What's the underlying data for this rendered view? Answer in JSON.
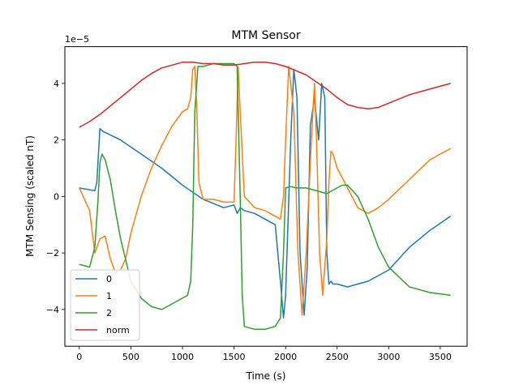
{
  "chart_data": {
    "type": "line",
    "title": "MTM Sensor",
    "xlabel": "Time (s)",
    "ylabel": "MTM Sensing (scaled nT)",
    "scale_label": "1e−5",
    "xlim": [
      -140,
      3760
    ],
    "ylim": [
      -5.3,
      5.3
    ],
    "xticks": [
      0,
      500,
      1000,
      1500,
      2000,
      2500,
      3000,
      3500
    ],
    "xtick_labels": [
      "0",
      "500",
      "1000",
      "1500",
      "2000",
      "2500",
      "3000",
      "3500"
    ],
    "yticks": [
      -4,
      -2,
      0,
      2,
      4
    ],
    "ytick_labels": [
      "−4",
      "−2",
      "0",
      "2",
      "4"
    ],
    "grid": false,
    "legend_position": "lower-left",
    "series": [
      {
        "name": "0",
        "color": "#1f77b4",
        "x": [
          0,
          150,
          170,
          200,
          230,
          400,
          600,
          800,
          1000,
          1200,
          1400,
          1500,
          1530,
          1560,
          1600,
          1700,
          1800,
          1900,
          1950,
          1980,
          2000,
          2050,
          2080,
          2110,
          2140,
          2180,
          2210,
          2240,
          2280,
          2320,
          2350,
          2380,
          2400,
          2420,
          2440,
          2460,
          2500,
          2600,
          2800,
          3000,
          3200,
          3400,
          3600
        ],
        "y": [
          0.3,
          0.2,
          0.5,
          2.4,
          2.3,
          2.0,
          1.5,
          1.0,
          0.4,
          -0.1,
          -0.4,
          -0.3,
          -0.6,
          -0.4,
          -0.5,
          -0.6,
          -0.8,
          -1.0,
          -3.0,
          -4.3,
          -3.5,
          2.0,
          4.5,
          3.5,
          -2.0,
          -4.2,
          -2.5,
          2.5,
          3.5,
          2.0,
          4.0,
          3.5,
          -2.0,
          -3.1,
          -3.0,
          -3.1,
          -3.1,
          -3.2,
          -3.0,
          -2.6,
          -1.8,
          -1.2,
          -0.7
        ]
      },
      {
        "name": "1",
        "color": "#ff7f0e",
        "x": [
          0,
          100,
          150,
          200,
          250,
          300,
          350,
          400,
          450,
          500,
          600,
          700,
          800,
          900,
          1000,
          1050,
          1080,
          1100,
          1120,
          1140,
          1160,
          1200,
          1300,
          1400,
          1500,
          1520,
          1540,
          1560,
          1600,
          1700,
          1800,
          1900,
          1950,
          1980,
          2000,
          2030,
          2080,
          2120,
          2160,
          2200,
          2250,
          2280,
          2300,
          2330,
          2360,
          2400,
          2420,
          2440,
          2460,
          2500,
          2600,
          2700,
          2800,
          2900,
          3000,
          3200,
          3400,
          3600
        ],
        "y": [
          0.3,
          -0.5,
          -2.0,
          -1.5,
          -1.4,
          -2.2,
          -2.7,
          -2.6,
          -2.2,
          -1.3,
          0.0,
          1.0,
          1.8,
          2.5,
          3.0,
          3.1,
          3.5,
          4.5,
          4.6,
          3.0,
          0.5,
          -0.1,
          -0.1,
          -0.2,
          -0.2,
          2.0,
          4.6,
          3.0,
          0.0,
          -0.4,
          -0.5,
          -0.7,
          -0.8,
          0.0,
          2.0,
          4.6,
          3.0,
          -2.0,
          -4.2,
          -2.0,
          2.0,
          4.0,
          2.0,
          -2.0,
          -3.5,
          -1.5,
          0.5,
          1.6,
          1.5,
          1.0,
          0.3,
          -0.4,
          -0.6,
          -0.4,
          -0.1,
          0.6,
          1.3,
          1.7
        ]
      },
      {
        "name": "2",
        "color": "#2ca02c",
        "x": [
          0,
          100,
          150,
          180,
          200,
          220,
          250,
          300,
          350,
          400,
          500,
          600,
          700,
          800,
          900,
          1000,
          1050,
          1080,
          1100,
          1120,
          1150,
          1200,
          1300,
          1400,
          1500,
          1530,
          1560,
          1580,
          1600,
          1700,
          1800,
          1900,
          1950,
          1980,
          2000,
          2050,
          2100,
          2200,
          2300,
          2400,
          2450,
          2500,
          2550,
          2600,
          2700,
          2800,
          2900,
          3000,
          3200,
          3400,
          3600
        ],
        "y": [
          -2.4,
          -2.5,
          -1.8,
          -0.2,
          1.2,
          1.5,
          1.3,
          0.6,
          -0.5,
          -1.5,
          -3.0,
          -3.6,
          -3.9,
          -4.0,
          -3.8,
          -3.6,
          -3.5,
          -3.0,
          -1.0,
          3.0,
          4.6,
          4.6,
          4.7,
          4.7,
          4.7,
          4.6,
          0.0,
          -3.5,
          -4.6,
          -4.7,
          -4.7,
          -4.6,
          -4.3,
          -2.0,
          0.3,
          0.35,
          0.3,
          0.3,
          0.2,
          0.1,
          0.2,
          0.3,
          0.4,
          0.4,
          0.0,
          -0.8,
          -1.8,
          -2.5,
          -3.2,
          -3.4,
          -3.5
        ]
      },
      {
        "name": "norm",
        "color": "#d62728",
        "x": [
          0,
          100,
          200,
          300,
          400,
          500,
          600,
          700,
          800,
          900,
          1000,
          1100,
          1200,
          1300,
          1400,
          1500,
          1600,
          1700,
          1800,
          1900,
          2000,
          2100,
          2200,
          2300,
          2400,
          2500,
          2600,
          2700,
          2800,
          2900,
          3000,
          3100,
          3200,
          3300,
          3400,
          3500,
          3600
        ],
        "y": [
          2.45,
          2.65,
          2.9,
          3.2,
          3.5,
          3.8,
          4.1,
          4.35,
          4.55,
          4.65,
          4.75,
          4.75,
          4.7,
          4.7,
          4.65,
          4.65,
          4.7,
          4.75,
          4.75,
          4.7,
          4.6,
          4.45,
          4.3,
          4.05,
          3.8,
          3.5,
          3.25,
          3.15,
          3.1,
          3.15,
          3.3,
          3.45,
          3.6,
          3.7,
          3.8,
          3.9,
          4.0
        ]
      }
    ]
  }
}
